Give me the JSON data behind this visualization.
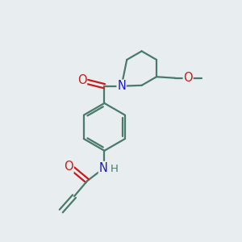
{
  "bg_color": "#e8edf0",
  "bond_color": "#4a7a6a",
  "bond_width": 1.6,
  "atom_colors": {
    "C": "#4a7a6a",
    "N": "#1a1acc",
    "O": "#cc1a1a",
    "H": "#4a7a6a"
  },
  "font_size": 9.5
}
